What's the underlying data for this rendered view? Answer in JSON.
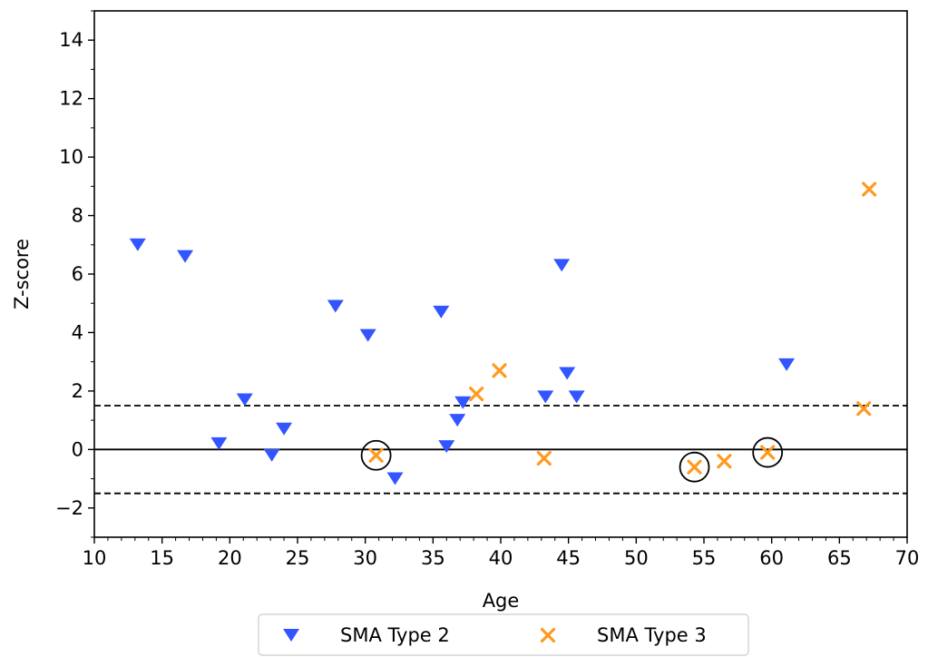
{
  "chart_data": {
    "type": "scatter",
    "xlabel": "Age",
    "ylabel": "Z-score",
    "xlim": [
      10,
      70
    ],
    "ylim": [
      -3,
      15
    ],
    "xticks": [
      10,
      15,
      20,
      25,
      30,
      35,
      40,
      45,
      50,
      55,
      60,
      65,
      70
    ],
    "yticks": [
      -2,
      0,
      2,
      4,
      6,
      8,
      10,
      12,
      14
    ],
    "xtick_labels": [
      "10",
      "15",
      "20",
      "25",
      "30",
      "35",
      "40",
      "45",
      "50",
      "55",
      "60",
      "65",
      "70"
    ],
    "ytick_labels": [
      "−2",
      "0",
      "2",
      "4",
      "6",
      "8",
      "10",
      "12",
      "14"
    ],
    "grid": false,
    "legend_position": "bottom-center",
    "reference_lines": [
      {
        "y": 1.5,
        "style": "dashed"
      },
      {
        "y": 0,
        "style": "solid"
      },
      {
        "y": -1.5,
        "style": "dashed"
      }
    ],
    "series": [
      {
        "name": "SMA Type 2",
        "marker": "triangle-down",
        "color": "#3355ff",
        "points": [
          {
            "x": 13.2,
            "y": 7.0
          },
          {
            "x": 16.7,
            "y": 6.6
          },
          {
            "x": 19.2,
            "y": 0.2
          },
          {
            "x": 21.1,
            "y": 1.7
          },
          {
            "x": 23.1,
            "y": -0.2
          },
          {
            "x": 24.0,
            "y": 0.7
          },
          {
            "x": 27.8,
            "y": 4.9
          },
          {
            "x": 30.2,
            "y": 3.9
          },
          {
            "x": 32.2,
            "y": -1.0
          },
          {
            "x": 35.6,
            "y": 4.7
          },
          {
            "x": 36.0,
            "y": 0.1
          },
          {
            "x": 36.8,
            "y": 1.0
          },
          {
            "x": 37.2,
            "y": 1.6
          },
          {
            "x": 43.3,
            "y": 1.8
          },
          {
            "x": 44.5,
            "y": 6.3
          },
          {
            "x": 44.9,
            "y": 2.6
          },
          {
            "x": 45.6,
            "y": 1.8
          },
          {
            "x": 61.1,
            "y": 2.9
          }
        ]
      },
      {
        "name": "SMA Type 3",
        "marker": "x",
        "color": "#ff9a1f",
        "points": [
          {
            "x": 30.8,
            "y": -0.2
          },
          {
            "x": 38.2,
            "y": 1.9
          },
          {
            "x": 39.9,
            "y": 2.7
          },
          {
            "x": 43.2,
            "y": -0.3
          },
          {
            "x": 54.3,
            "y": -0.6
          },
          {
            "x": 56.5,
            "y": -0.4
          },
          {
            "x": 59.7,
            "y": -0.1
          },
          {
            "x": 66.8,
            "y": 1.4
          },
          {
            "x": 67.2,
            "y": 8.9
          }
        ]
      }
    ],
    "circled_points": [
      {
        "x": 30.8,
        "y": -0.2
      },
      {
        "x": 54.3,
        "y": -0.6
      },
      {
        "x": 59.7,
        "y": -0.1
      }
    ]
  }
}
